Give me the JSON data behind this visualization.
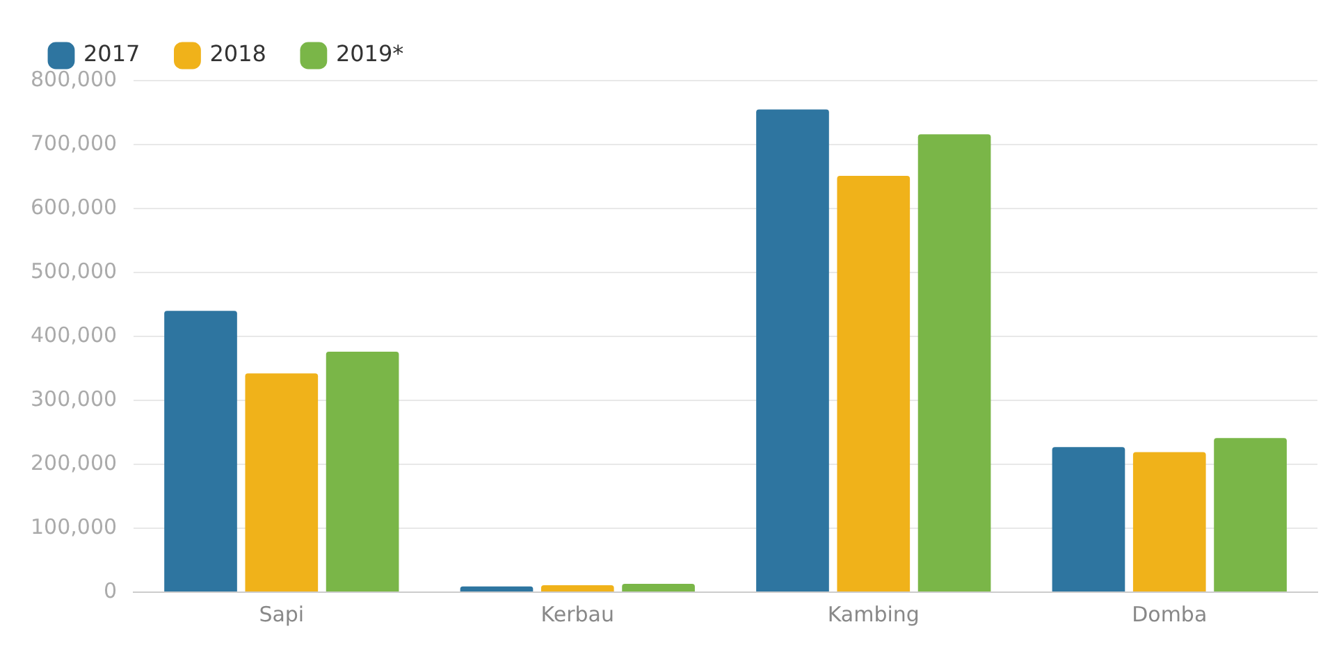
{
  "chart_data": {
    "type": "bar",
    "categories": [
      "Sapi",
      "Kerbau",
      "Kambing",
      "Domba"
    ],
    "series": [
      {
        "name": "2017",
        "color": "#2e75a0",
        "values": [
          440000,
          9000,
          755000,
          227000
        ]
      },
      {
        "name": "2018",
        "color": "#f0b21a",
        "values": [
          342000,
          11000,
          651000,
          219000
        ]
      },
      {
        "name": "2019*",
        "color": "#7ab648",
        "values": [
          376000,
          13000,
          716000,
          241000
        ]
      }
    ],
    "ylim": [
      0,
      800000
    ],
    "yticks": [
      {
        "value": 0,
        "label": "0"
      },
      {
        "value": 100000,
        "label": "100,000"
      },
      {
        "value": 200000,
        "label": "200,000"
      },
      {
        "value": 300000,
        "label": "300,000"
      },
      {
        "value": 400000,
        "label": "400,000"
      },
      {
        "value": 500000,
        "label": "500,000"
      },
      {
        "value": 600000,
        "label": "600,000"
      },
      {
        "value": 700000,
        "label": "700,000"
      },
      {
        "value": 800000,
        "label": "800,000"
      }
    ],
    "grid": "y",
    "legend": "top left"
  }
}
